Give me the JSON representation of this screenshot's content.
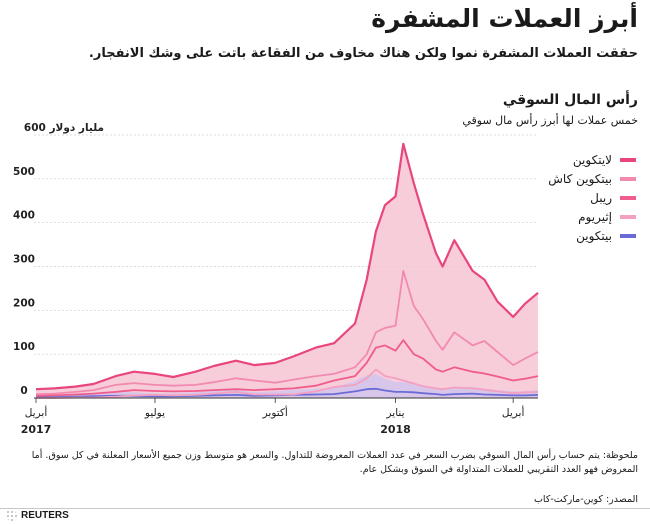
{
  "header": {
    "title": "أبرز العملات المشفرة",
    "subtitle": "حققت العملات المشفرة نموا ولكن هناك مخاوف من الفقاعة باتت على وشك الانفجار."
  },
  "section": {
    "title": "رأس المال السوقي",
    "subtitle": "خمس عملات لها أبرز رأس مال سوقي"
  },
  "colors": {
    "bitcoin": "#e8467c",
    "bitcoin_fill": "#f6c4d4",
    "ethereum": "#f28ab0",
    "ripple": "#f05c8c",
    "bitcoin_cash": "#f4a0c0",
    "litecoin": "#6b6bd6"
  },
  "footer": {
    "note": "ملحوظة: يتم حساب رأس المال السوقي بضرب السعر في عدد العملات المعروضة للتداول. والسعر هو متوسط وزن جميع الأسعار المعلنة في كل سوق. أما المعروض فهو العدد التقريبي للعملات المتداولة في السوق وبشكل عام.",
    "source": "المصدر: كوين-ماركت-كاب",
    "logo": "REUTERS"
  },
  "chart_data": {
    "type": "area",
    "title": "رأس المال السوقي",
    "subtitle": "خمس عملات لها أبرز رأس مال سوقي",
    "ylabel": "600 مليار دولار",
    "ylim": [
      0,
      600
    ],
    "y_ticks": [
      0,
      100,
      200,
      300,
      400,
      500
    ],
    "y_tick_labels": [
      "0",
      "100",
      "200",
      "300",
      "400",
      "500",
      "600 مليار دولار"
    ],
    "x_ticks": [
      {
        "date": "2017-04-01",
        "label": "أبريل",
        "year": "2017"
      },
      {
        "date": "2017-07-01",
        "label": "يوليو",
        "year": ""
      },
      {
        "date": "2017-10-01",
        "label": "أكتوبر",
        "year": ""
      },
      {
        "date": "2018-01-01",
        "label": "يناير",
        "year": "2018"
      },
      {
        "date": "2018-04-01",
        "label": "أبريل",
        "year": ""
      }
    ],
    "x_range": [
      "2017-04-01",
      "2018-04-20"
    ],
    "legend_position": "right",
    "x": [
      "2017-04-01",
      "2017-04-15",
      "2017-05-01",
      "2017-05-15",
      "2017-06-01",
      "2017-06-15",
      "2017-07-01",
      "2017-07-15",
      "2017-08-01",
      "2017-08-15",
      "2017-09-01",
      "2017-09-15",
      "2017-10-01",
      "2017-10-15",
      "2017-11-01",
      "2017-11-15",
      "2017-12-01",
      "2017-12-10",
      "2017-12-17",
      "2017-12-24",
      "2018-01-01",
      "2018-01-07",
      "2018-01-15",
      "2018-01-22",
      "2018-02-01",
      "2018-02-06",
      "2018-02-15",
      "2018-03-01",
      "2018-03-10",
      "2018-03-20",
      "2018-04-01",
      "2018-04-10",
      "2018-04-20"
    ],
    "series": [
      {
        "name": "بيتكوين",
        "color_key": "litecoin",
        "values": [
          2,
          2,
          3,
          4,
          5,
          5,
          4,
          4,
          5,
          6,
          7,
          5,
          6,
          7,
          8,
          9,
          15,
          20,
          21,
          17,
          14,
          14,
          13,
          11,
          9,
          7,
          9,
          10,
          8,
          7,
          6,
          6,
          7
        ]
      },
      {
        "name": "إثيريوم",
        "color_key": "bitcoin_cash",
        "values": [
          0,
          0,
          1,
          1,
          3,
          6,
          7,
          6,
          7,
          10,
          14,
          8,
          8,
          8,
          15,
          25,
          30,
          45,
          65,
          50,
          45,
          40,
          33,
          27,
          22,
          20,
          24,
          22,
          19,
          15,
          11,
          13,
          14
        ]
      },
      {
        "name": "ريبل",
        "color_key": "ripple",
        "values": [
          5,
          6,
          8,
          10,
          14,
          18,
          16,
          15,
          16,
          18,
          20,
          18,
          20,
          22,
          28,
          40,
          50,
          80,
          115,
          120,
          108,
          132,
          100,
          90,
          65,
          60,
          70,
          60,
          56,
          49,
          40,
          44,
          50
        ]
      },
      {
        "name": "بيتكوين كاش",
        "color_key": "ethereum",
        "values": [
          9,
          10,
          14,
          18,
          30,
          34,
          30,
          28,
          30,
          36,
          45,
          40,
          35,
          42,
          50,
          55,
          70,
          100,
          150,
          160,
          165,
          290,
          210,
          180,
          130,
          110,
          150,
          120,
          130,
          105,
          75,
          90,
          105
        ]
      },
      {
        "name": "لايتكوين",
        "color_key": "bitcoin",
        "values": [
          20,
          22,
          26,
          32,
          50,
          60,
          55,
          48,
          60,
          73,
          85,
          75,
          80,
          95,
          115,
          125,
          170,
          270,
          380,
          440,
          460,
          580,
          490,
          420,
          330,
          300,
          360,
          290,
          270,
          220,
          185,
          215,
          240
        ]
      }
    ]
  }
}
